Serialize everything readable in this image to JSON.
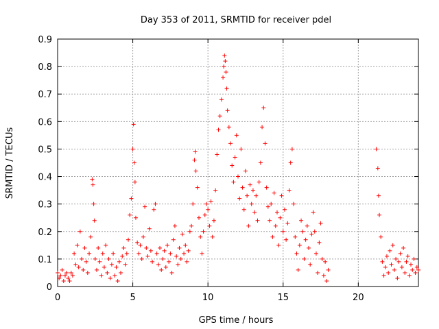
{
  "chart_data": {
    "type": "scatter",
    "title": "Day 353 of 2011, SRMTID for receiver pdel",
    "xlabel": "GPS time / hours",
    "ylabel": "SRMTID / TECUs",
    "xlim": [
      0,
      24
    ],
    "ylim": [
      0,
      0.9
    ],
    "xticks": [
      0,
      5,
      10,
      15,
      20
    ],
    "yticks": [
      0,
      0.1,
      0.2,
      0.3,
      0.4,
      0.5,
      0.6,
      0.7,
      0.8,
      0.9
    ],
    "grid": true,
    "marker": "plus",
    "color": "#ff0000",
    "series": [
      {
        "points": [
          [
            0.0,
            0.05
          ],
          [
            0.1,
            0.03
          ],
          [
            0.2,
            0.04
          ],
          [
            0.3,
            0.06
          ],
          [
            0.4,
            0.02
          ],
          [
            0.5,
            0.04
          ],
          [
            0.6,
            0.05
          ],
          [
            0.7,
            0.03
          ],
          [
            0.8,
            0.02
          ],
          [
            0.9,
            0.05
          ],
          [
            1.0,
            0.04
          ],
          [
            1.1,
            0.12
          ],
          [
            1.2,
            0.08
          ],
          [
            1.3,
            0.15
          ],
          [
            1.4,
            0.07
          ],
          [
            1.5,
            0.2
          ],
          [
            1.6,
            0.1
          ],
          [
            1.7,
            0.06
          ],
          [
            1.8,
            0.14
          ],
          [
            1.9,
            0.09
          ],
          [
            2.0,
            0.05
          ],
          [
            2.1,
            0.12
          ],
          [
            2.2,
            0.18
          ],
          [
            2.3,
            0.39
          ],
          [
            2.35,
            0.37
          ],
          [
            2.4,
            0.3
          ],
          [
            2.45,
            0.24
          ],
          [
            2.5,
            0.1
          ],
          [
            2.6,
            0.06
          ],
          [
            2.7,
            0.14
          ],
          [
            2.8,
            0.09
          ],
          [
            2.9,
            0.04
          ],
          [
            3.0,
            0.12
          ],
          [
            3.1,
            0.07
          ],
          [
            3.2,
            0.15
          ],
          [
            3.3,
            0.05
          ],
          [
            3.4,
            0.1
          ],
          [
            3.5,
            0.03
          ],
          [
            3.6,
            0.08
          ],
          [
            3.7,
            0.12
          ],
          [
            3.8,
            0.04
          ],
          [
            3.9,
            0.07
          ],
          [
            4.0,
            0.02
          ],
          [
            4.1,
            0.09
          ],
          [
            4.2,
            0.05
          ],
          [
            4.3,
            0.11
          ],
          [
            4.4,
            0.14
          ],
          [
            4.5,
            0.08
          ],
          [
            4.6,
            0.12
          ],
          [
            4.7,
            0.17
          ],
          [
            4.8,
            0.26
          ],
          [
            4.9,
            0.32
          ],
          [
            5.0,
            0.5
          ],
          [
            5.05,
            0.59
          ],
          [
            5.1,
            0.45
          ],
          [
            5.15,
            0.38
          ],
          [
            5.2,
            0.25
          ],
          [
            5.3,
            0.16
          ],
          [
            5.4,
            0.12
          ],
          [
            5.5,
            0.15
          ],
          [
            5.6,
            0.1
          ],
          [
            5.7,
            0.18
          ],
          [
            5.8,
            0.29
          ],
          [
            5.9,
            0.14
          ],
          [
            6.0,
            0.11
          ],
          [
            6.1,
            0.21
          ],
          [
            6.2,
            0.13
          ],
          [
            6.3,
            0.09
          ],
          [
            6.4,
            0.28
          ],
          [
            6.5,
            0.3
          ],
          [
            6.6,
            0.12
          ],
          [
            6.7,
            0.08
          ],
          [
            6.8,
            0.14
          ],
          [
            6.9,
            0.06
          ],
          [
            7.0,
            0.1
          ],
          [
            7.1,
            0.13
          ],
          [
            7.2,
            0.07
          ],
          [
            7.3,
            0.15
          ],
          [
            7.4,
            0.09
          ],
          [
            7.5,
            0.12
          ],
          [
            7.6,
            0.05
          ],
          [
            7.7,
            0.17
          ],
          [
            7.8,
            0.22
          ],
          [
            7.9,
            0.11
          ],
          [
            8.0,
            0.08
          ],
          [
            8.1,
            0.14
          ],
          [
            8.2,
            0.1
          ],
          [
            8.3,
            0.19
          ],
          [
            8.4,
            0.12
          ],
          [
            8.5,
            0.15
          ],
          [
            8.6,
            0.09
          ],
          [
            8.7,
            0.13
          ],
          [
            8.8,
            0.2
          ],
          [
            8.9,
            0.22
          ],
          [
            9.0,
            0.3
          ],
          [
            9.1,
            0.46
          ],
          [
            9.15,
            0.49
          ],
          [
            9.2,
            0.42
          ],
          [
            9.3,
            0.36
          ],
          [
            9.4,
            0.25
          ],
          [
            9.5,
            0.18
          ],
          [
            9.6,
            0.12
          ],
          [
            9.7,
            0.2
          ],
          [
            9.8,
            0.26
          ],
          [
            9.9,
            0.3
          ],
          [
            10.0,
            0.28
          ],
          [
            10.1,
            0.22
          ],
          [
            10.2,
            0.31
          ],
          [
            10.3,
            0.18
          ],
          [
            10.4,
            0.24
          ],
          [
            10.5,
            0.35
          ],
          [
            10.6,
            0.48
          ],
          [
            10.7,
            0.57
          ],
          [
            10.8,
            0.62
          ],
          [
            10.9,
            0.68
          ],
          [
            11.0,
            0.76
          ],
          [
            11.05,
            0.8
          ],
          [
            11.1,
            0.84
          ],
          [
            11.15,
            0.82
          ],
          [
            11.2,
            0.78
          ],
          [
            11.25,
            0.72
          ],
          [
            11.3,
            0.64
          ],
          [
            11.4,
            0.58
          ],
          [
            11.5,
            0.52
          ],
          [
            11.6,
            0.44
          ],
          [
            11.7,
            0.38
          ],
          [
            11.8,
            0.47
          ],
          [
            11.9,
            0.55
          ],
          [
            12.0,
            0.4
          ],
          [
            12.1,
            0.32
          ],
          [
            12.2,
            0.5
          ],
          [
            12.3,
            0.36
          ],
          [
            12.4,
            0.28
          ],
          [
            12.5,
            0.42
          ],
          [
            12.6,
            0.33
          ],
          [
            12.7,
            0.22
          ],
          [
            12.8,
            0.37
          ],
          [
            12.9,
            0.3
          ],
          [
            13.0,
            0.35
          ],
          [
            13.1,
            0.27
          ],
          [
            13.2,
            0.33
          ],
          [
            13.3,
            0.24
          ],
          [
            13.4,
            0.38
          ],
          [
            13.5,
            0.45
          ],
          [
            13.6,
            0.58
          ],
          [
            13.7,
            0.65
          ],
          [
            13.8,
            0.52
          ],
          [
            13.9,
            0.36
          ],
          [
            14.0,
            0.29
          ],
          [
            14.1,
            0.24
          ],
          [
            14.2,
            0.3
          ],
          [
            14.3,
            0.18
          ],
          [
            14.4,
            0.34
          ],
          [
            14.5,
            0.22
          ],
          [
            14.6,
            0.27
          ],
          [
            14.7,
            0.15
          ],
          [
            14.8,
            0.25
          ],
          [
            14.9,
            0.33
          ],
          [
            15.0,
            0.2
          ],
          [
            15.1,
            0.28
          ],
          [
            15.2,
            0.17
          ],
          [
            15.3,
            0.23
          ],
          [
            15.4,
            0.35
          ],
          [
            15.5,
            0.45
          ],
          [
            15.6,
            0.5
          ],
          [
            15.7,
            0.3
          ],
          [
            15.8,
            0.18
          ],
          [
            15.9,
            0.12
          ],
          [
            16.0,
            0.06
          ],
          [
            16.1,
            0.15
          ],
          [
            16.2,
            0.24
          ],
          [
            16.3,
            0.2
          ],
          [
            16.4,
            0.1
          ],
          [
            16.5,
            0.17
          ],
          [
            16.6,
            0.22
          ],
          [
            16.7,
            0.14
          ],
          [
            16.8,
            0.08
          ],
          [
            16.9,
            0.19
          ],
          [
            17.0,
            0.27
          ],
          [
            17.1,
            0.2
          ],
          [
            17.2,
            0.12
          ],
          [
            17.3,
            0.05
          ],
          [
            17.4,
            0.16
          ],
          [
            17.5,
            0.23
          ],
          [
            17.6,
            0.1
          ],
          [
            17.7,
            0.04
          ],
          [
            17.8,
            0.09
          ],
          [
            17.9,
            0.02
          ],
          [
            18.0,
            0.06
          ],
          [
            21.2,
            0.5
          ],
          [
            21.3,
            0.43
          ],
          [
            21.35,
            0.33
          ],
          [
            21.4,
            0.26
          ],
          [
            21.5,
            0.18
          ],
          [
            21.6,
            0.09
          ],
          [
            21.7,
            0.04
          ],
          [
            21.8,
            0.07
          ],
          [
            21.9,
            0.11
          ],
          [
            22.0,
            0.05
          ],
          [
            22.1,
            0.13
          ],
          [
            22.2,
            0.08
          ],
          [
            22.3,
            0.15
          ],
          [
            22.4,
            0.06
          ],
          [
            22.5,
            0.1
          ],
          [
            22.6,
            0.03
          ],
          [
            22.7,
            0.09
          ],
          [
            22.8,
            0.12
          ],
          [
            22.9,
            0.07
          ],
          [
            23.0,
            0.14
          ],
          [
            23.1,
            0.05
          ],
          [
            23.2,
            0.09
          ],
          [
            23.3,
            0.11
          ],
          [
            23.4,
            0.04
          ],
          [
            23.5,
            0.08
          ],
          [
            23.6,
            0.06
          ],
          [
            23.7,
            0.1
          ],
          [
            23.8,
            0.05
          ],
          [
            23.9,
            0.07
          ],
          [
            24.0,
            0.06
          ]
        ]
      }
    ]
  }
}
